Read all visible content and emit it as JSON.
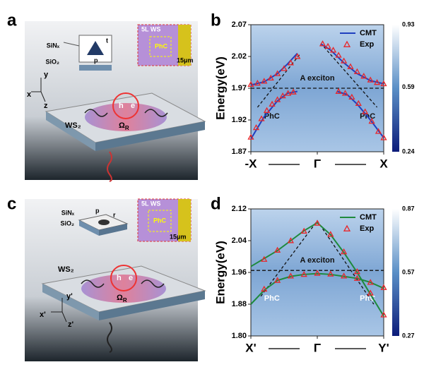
{
  "panel_labels": [
    "a",
    "b",
    "c",
    "d"
  ],
  "schematics": [
    {
      "top_layer": "SiNₓ",
      "bottom_layer": "SiO₂",
      "inset_title": "5L WS",
      "inset_label": "PhC",
      "scale": "15μm",
      "hole": "h",
      "electron": "e",
      "material": "WS₂",
      "rabi": "Ω",
      "rabi_sub": "R",
      "axes": [
        "y",
        "x",
        "z"
      ],
      "dims": [
        "t",
        "p"
      ]
    },
    {
      "top_layer": "SiNₓ",
      "bottom_layer": "SiO₂",
      "inset_title": "5L WS",
      "inset_label": "PhC",
      "scale": "15μm",
      "hole": "h",
      "electron": "e",
      "material": "WS₂",
      "rabi": "Ω",
      "rabi_sub": "R",
      "axes": [
        "y'",
        "x'",
        "z'"
      ],
      "dims": [
        "p",
        "r"
      ]
    }
  ],
  "chart_data": [
    {
      "type": "line",
      "ylabel": "Energy(eV)",
      "xlim": [
        -1,
        1
      ],
      "xticks": [
        {
          "value": -1,
          "label": "-X"
        },
        {
          "value": 0,
          "label": "Γ"
        },
        {
          "value": 1,
          "label": "X"
        }
      ],
      "ylim": [
        1.87,
        2.07
      ],
      "yticks": [
        1.87,
        1.92,
        1.97,
        2.02,
        2.07
      ],
      "exciton_energy": 1.97,
      "annotations": [
        "A exciton",
        "PhC",
        "PhC"
      ],
      "legend": "upper right",
      "colorbar": {
        "lim": [
          0.24,
          0.93
        ],
        "ticks": [
          0.24,
          0.59,
          0.93
        ]
      },
      "guides": [
        {
          "x": [
            -0.9,
            -0.25
          ],
          "y": [
            1.94,
            2.025
          ]
        },
        {
          "x": [
            0.1,
            0.9
          ],
          "y": [
            2.035,
            1.94
          ]
        }
      ],
      "series": [
        {
          "name": "CMT",
          "color": "#1f3fbf",
          "x": [
            -1,
            -0.8,
            -0.6,
            -0.45,
            -0.3,
            null,
            -1,
            -0.8,
            -0.6,
            -0.45,
            -0.3,
            null,
            0.05,
            0.2,
            0.4,
            0.6,
            0.8,
            1,
            null,
            0.3,
            0.45,
            0.6,
            0.8,
            1
          ],
          "values": [
            1.89,
            1.925,
            1.95,
            1.962,
            1.965,
            null,
            1.975,
            1.98,
            1.993,
            2.008,
            2.025,
            null,
            2.04,
            2.03,
            2.01,
            1.993,
            1.982,
            1.977,
            null,
            1.965,
            1.96,
            1.945,
            1.92,
            1.892
          ]
        },
        {
          "name": "Exp",
          "color": "#e8262a",
          "marker": "triangle",
          "x": [
            -1,
            -0.92,
            -0.84,
            -0.76,
            -0.68,
            -0.6,
            -0.52,
            -0.44,
            -0.36,
            -1,
            -0.9,
            -0.8,
            -0.7,
            -0.6,
            -0.5,
            -0.4,
            -0.3,
            0.08,
            0.16,
            0.24,
            0.32,
            0.4,
            0.5,
            0.6,
            0.7,
            0.8,
            0.9,
            1,
            0.32,
            0.42,
            0.52,
            0.62,
            0.72,
            0.82,
            0.92,
            1
          ],
          "values": [
            1.893,
            1.908,
            1.922,
            1.935,
            1.945,
            1.952,
            1.958,
            1.962,
            1.964,
            1.976,
            1.978,
            1.981,
            1.986,
            1.993,
            2.001,
            2.01,
            2.02,
            2.04,
            2.036,
            2.03,
            2.022,
            2.013,
            2.004,
            1.996,
            1.989,
            1.983,
            1.979,
            1.977,
            1.965,
            1.962,
            1.956,
            1.946,
            1.933,
            1.918,
            1.902,
            1.892
          ]
        }
      ]
    },
    {
      "type": "line",
      "ylabel": "Energy(eV)",
      "xlim": [
        -1,
        1
      ],
      "xticks": [
        {
          "value": -1,
          "label": "X'"
        },
        {
          "value": 0,
          "label": "Γ"
        },
        {
          "value": 1,
          "label": "Y'"
        }
      ],
      "ylim": [
        1.8,
        2.12
      ],
      "yticks": [
        {
          "value": 1.8,
          "label": "1.80"
        },
        1.88,
        1.96,
        2.04,
        2.12
      ],
      "exciton_energy": 1.965,
      "annotations": [
        "A exciton",
        "PhC",
        "PhC"
      ],
      "legend": "upper right",
      "colorbar": {
        "lim": [
          0.27,
          0.87
        ],
        "ticks": [
          0.27,
          0.57,
          0.87
        ]
      },
      "guides": [
        {
          "x": [
            -0.85,
            0,
            0.85
          ],
          "y": [
            1.9,
            2.09,
            1.88
          ]
        }
      ],
      "series": [
        {
          "name": "CMT",
          "color": "#1e8a3c",
          "x": [
            -1,
            -0.8,
            -0.6,
            -0.4,
            -0.2,
            0,
            0.2,
            0.4,
            0.6,
            0.8,
            1,
            null,
            -1,
            -0.8,
            -0.6,
            -0.4,
            -0.2,
            0,
            0.2,
            0.4,
            0.6,
            0.8,
            1
          ],
          "values": [
            1.975,
            1.995,
            2.015,
            2.04,
            2.065,
            2.085,
            2.055,
            2.01,
            1.96,
            1.905,
            1.85,
            null,
            1.88,
            1.915,
            1.94,
            1.95,
            1.955,
            1.957,
            1.955,
            1.95,
            1.945,
            1.935,
            1.92
          ]
        },
        {
          "name": "Exp",
          "color": "#e8262a",
          "marker": "triangle",
          "x": [
            -0.8,
            -0.6,
            -0.4,
            -0.2,
            0,
            0.2,
            0.4,
            0.6,
            0.8,
            1,
            -0.8,
            -0.6,
            -0.4,
            -0.2,
            0,
            0.2,
            0.4,
            0.6,
            0.8,
            1
          ],
          "values": [
            1.993,
            2.016,
            2.04,
            2.064,
            2.084,
            2.056,
            2.012,
            1.962,
            1.908,
            1.853,
            1.918,
            1.94,
            1.951,
            1.955,
            1.958,
            1.956,
            1.951,
            1.945,
            1.935,
            1.922
          ]
        }
      ]
    }
  ]
}
